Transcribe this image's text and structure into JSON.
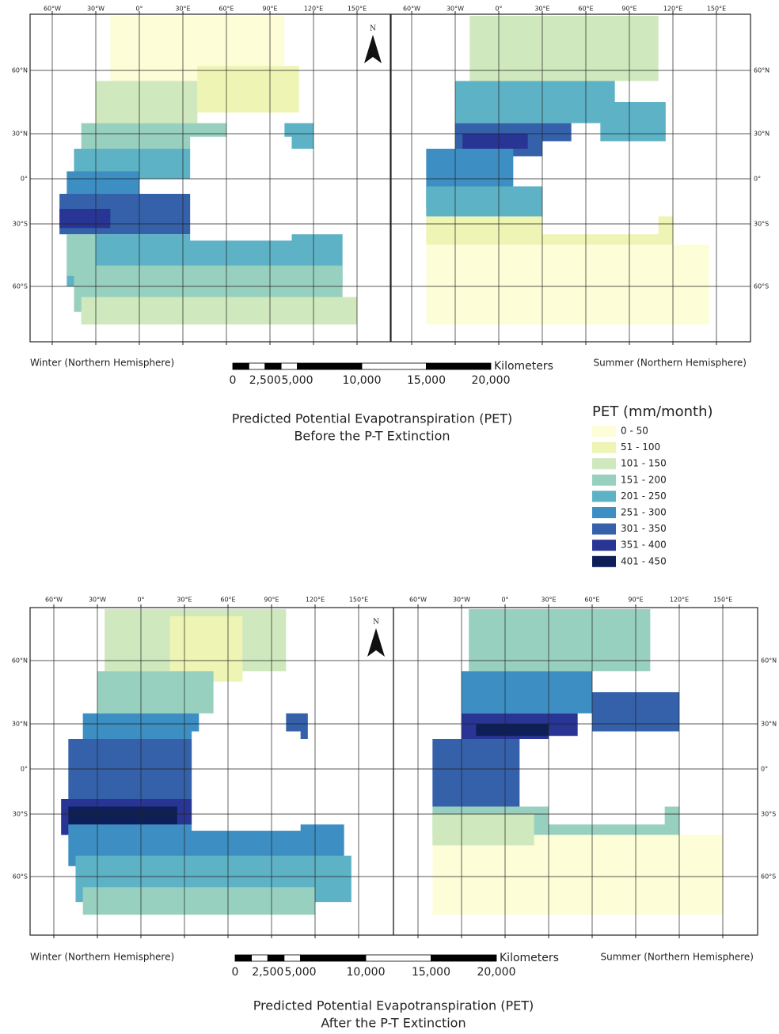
{
  "north_label": "N",
  "lon_labels": [
    "60°W",
    "30°W",
    "0°",
    "30°E",
    "60°E",
    "90°E",
    "120°E",
    "150°E"
  ],
  "lat_labels": [
    "60°N",
    "30°N",
    "0°",
    "30°S",
    "60°S"
  ],
  "panels": [
    {
      "captions": [
        "Winter (Northern Hemisphere)",
        "Summer (Northern Hemisphere)"
      ],
      "scale_labels": [
        "0",
        "2,500",
        "5,000",
        "10,000",
        "15,000",
        "20,000"
      ],
      "scale_unit": "Kilometers",
      "title": [
        "Predicted Potential Evapotranspiration (PET)",
        "Before the P-T Extinction"
      ]
    },
    {
      "captions": [
        "Winter (Northern Hemisphere)",
        "Summer (Northern Hemisphere)"
      ],
      "scale_labels": [
        "0",
        "2,500",
        "5,000",
        "10,000",
        "15,000",
        "20,000"
      ],
      "scale_unit": "Kilometers",
      "title": [
        "Predicted Potential Evapotranspiration (PET)",
        "After the P-T Extinction"
      ]
    }
  ],
  "legend": {
    "title": "PET (mm/month)",
    "items": [
      {
        "label": "0 - 50",
        "color": "#fdfdd8"
      },
      {
        "label": "51 - 100",
        "color": "#eef5b4"
      },
      {
        "label": "101 - 150",
        "color": "#cfe8bd"
      },
      {
        "label": "151 - 200",
        "color": "#98d0bf"
      },
      {
        "label": "201 - 250",
        "color": "#5eb2c6"
      },
      {
        "label": "251 - 300",
        "color": "#3d8fc3"
      },
      {
        "label": "301 - 350",
        "color": "#3461aa"
      },
      {
        "label": "351 - 400",
        "color": "#283594"
      },
      {
        "label": "401 - 450",
        "color": "#0e1f58"
      }
    ]
  }
}
